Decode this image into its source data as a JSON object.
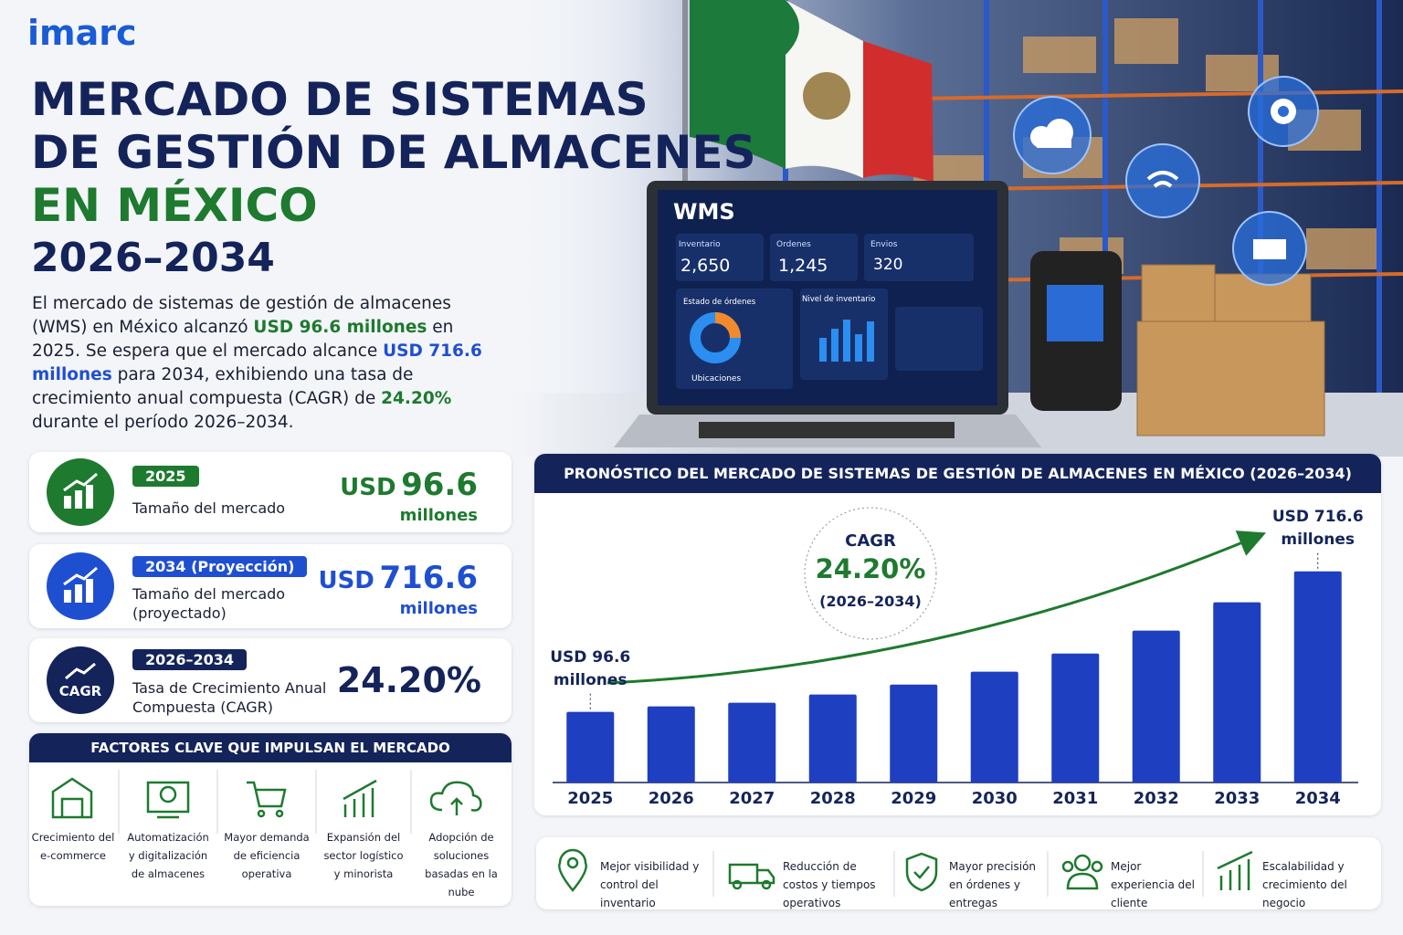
{
  "header": {
    "logo": "imarc",
    "title_lines": [
      "MERCADO DE SISTEMAS",
      "DE GESTIÓN DE ALMACENES"
    ],
    "title_highlight": "EN MÉXICO",
    "period": "2026–2034"
  },
  "intro": {
    "parts": [
      "El mercado de sistemas de gestión de almacenes (WMS) en México alcanzó",
      "USD 96.6 millones",
      "en 2025. Se espera que el mercado alcance",
      "USD 716.6 millones",
      "para 2034, exhibiendo una tasa de crecimiento anual compuesta (CAGR) de",
      "24.20%",
      "durante el período 2026–2034."
    ]
  },
  "screen": {
    "title": "WMS",
    "kpis": [
      {
        "label": "Inventario",
        "value": "2,650"
      },
      {
        "label": "Ordenes",
        "value": "1,245"
      },
      {
        "label": "Envios",
        "value": "320"
      }
    ],
    "panels": [
      "Estado de órdenes",
      "Nivel de inventario",
      "Ubicaciones"
    ]
  },
  "stats": [
    {
      "tag": "2025",
      "label": "Tamaño del mercado",
      "currency": "USD",
      "amount": "96.6",
      "unit": "millones"
    },
    {
      "tag": "2034 (Proyección)",
      "label": "Tamaño del mercado (proyectado)",
      "currency": "USD",
      "amount": "716.6",
      "unit": "millones"
    },
    {
      "tag": "2026–2034",
      "icon": "CAGR",
      "label": "Tasa de Crecimiento Anual Compuesta (CAGR)",
      "amount": "24.20%"
    }
  ],
  "factors": {
    "title": "FACTORES CLAVE QUE IMPULSAN EL MERCADO",
    "items": [
      "Crecimiento del e-commerce",
      "Automatización y digitalización de almacenes",
      "Mayor demanda de eficiencia operativa",
      "Expansión del sector logístico y minorista",
      "Adopción de soluciones basadas en la nube"
    ]
  },
  "benefits": [
    "Mejor visibilidad y control del inventario",
    "Reducción de costos y tiempos operativos",
    "Mayor precisión en órdenes y entregas",
    "Mejor experiencia del cliente",
    "Escalabilidad y crecimiento del negocio"
  ],
  "chart_data": {
    "type": "bar",
    "title": "PRONÓSTICO DEL MERCADO DE SISTEMAS DE GESTIÓN DE ALMACENES EN MÉXICO (2026–2034)",
    "categories": [
      "2025",
      "2026",
      "2027",
      "2028",
      "2029",
      "2030",
      "2031",
      "2032",
      "2033",
      "2034"
    ],
    "values": [
      96.6,
      121,
      137,
      173,
      217,
      274,
      354,
      455,
      580,
      716.6
    ],
    "value_labels": [
      "USD 96.6 millones",
      null,
      null,
      null,
      null,
      null,
      null,
      null,
      null,
      "USD 716.6 millones"
    ],
    "color": "#1e3fc0",
    "ylim": [
      -215,
      800
    ],
    "annotations": [
      "CAGR",
      "24.20%",
      "(2026–2034)"
    ]
  }
}
